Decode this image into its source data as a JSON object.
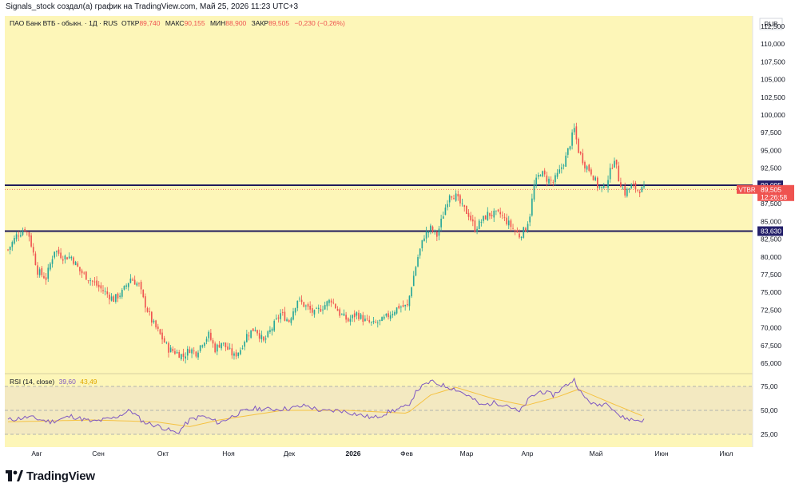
{
  "header": {
    "caption": "Signals_stock создал(а) график на TradingView.com, Май 25, 2026 11:23 UTC+3"
  },
  "legend": {
    "instrument": "ПАО Банк ВТБ - обыкн. · 1Д · RUS",
    "open_label": "ОТКР",
    "open_value": "89,740",
    "high_label": "МАКС",
    "high_value": "90,155",
    "low_label": "МИН",
    "low_value": "88,900",
    "close_label": "ЗАКР",
    "close_value": "89,505",
    "change": "−0,230 (−0,26%)"
  },
  "currency": "RUB",
  "price_tag": {
    "ticker": "VTBR",
    "price": "89,505",
    "countdown": "12:26:58"
  },
  "levels": [
    {
      "label": "90,095",
      "value": 90.095
    },
    {
      "label": "83,630",
      "value": 83.63
    }
  ],
  "rsi": {
    "label": "RSI (14, close)",
    "value": "39,60",
    "ma_value": "43,49"
  },
  "branding": {
    "logo_text": "TradingView"
  },
  "colors": {
    "up": "#26a69a",
    "down": "#ef5350",
    "background": "#fdf6b8",
    "level_line": "#1f1b5c",
    "rsi_line": "#7e57c2",
    "rsi_ma": "#f5c242",
    "rsi_band": "#f2e8c2"
  },
  "chart_data": {
    "type": "candlestick",
    "y_ticks": [
      "112,500",
      "110,000",
      "107,500",
      "105,000",
      "102,500",
      "100,000",
      "97,500",
      "95,000",
      "92,500",
      "90,000",
      "87,500",
      "85,000",
      "82,500",
      "80,000",
      "77,500",
      "75,000",
      "72,500",
      "70,000",
      "67,500",
      "65,000"
    ],
    "y_tick_values": [
      112.5,
      110,
      107.5,
      105,
      102.5,
      100,
      97.5,
      95,
      92.5,
      90,
      87.5,
      85,
      82.5,
      80,
      77.5,
      75,
      72.5,
      70,
      67.5,
      65
    ],
    "ylim": [
      64,
      113.5
    ],
    "x_ticks": [
      "Авг",
      "Сен",
      "Окт",
      "Ноя",
      "Дек",
      "2026",
      "Фев",
      "Мар",
      "Апр",
      "Май",
      "Июн",
      "Июл"
    ],
    "rsi_ticks": [
      "75,00",
      "50,00",
      "25,00"
    ],
    "rsi_tick_values": [
      75,
      50,
      25
    ],
    "rsi_ylim": [
      15,
      85
    ],
    "close_path": [
      [
        0,
        81
      ],
      [
        4,
        83
      ],
      [
        8,
        84
      ],
      [
        10,
        83
      ],
      [
        14,
        78
      ],
      [
        18,
        77
      ],
      [
        22,
        81
      ],
      [
        26,
        80
      ],
      [
        30,
        80
      ],
      [
        34,
        78
      ],
      [
        38,
        77
      ],
      [
        42,
        76
      ],
      [
        46,
        75
      ],
      [
        50,
        74
      ],
      [
        54,
        75
      ],
      [
        58,
        77
      ],
      [
        62,
        76
      ],
      [
        64,
        74
      ],
      [
        68,
        71
      ],
      [
        72,
        69
      ],
      [
        76,
        67
      ],
      [
        80,
        66.5
      ],
      [
        83,
        66
      ],
      [
        86,
        67
      ],
      [
        89,
        66.5
      ],
      [
        92,
        68
      ],
      [
        95,
        69
      ],
      [
        98,
        67
      ],
      [
        101,
        68
      ],
      [
        104,
        67
      ],
      [
        107,
        66
      ],
      [
        110,
        67
      ],
      [
        113,
        69
      ],
      [
        117,
        70
      ],
      [
        121,
        68
      ],
      [
        125,
        70
      ],
      [
        129,
        72
      ],
      [
        133,
        71
      ],
      [
        137,
        74
      ],
      [
        141,
        73
      ],
      [
        145,
        72
      ],
      [
        149,
        73
      ],
      [
        153,
        74
      ],
      [
        157,
        72
      ],
      [
        161,
        71
      ],
      [
        165,
        72
      ],
      [
        169,
        71
      ],
      [
        173,
        70.5
      ],
      [
        177,
        71
      ],
      [
        181,
        72
      ],
      [
        185,
        73
      ],
      [
        189,
        73
      ],
      [
        191,
        76
      ],
      [
        194,
        80
      ],
      [
        197,
        83
      ],
      [
        200,
        84
      ],
      [
        203,
        83
      ],
      [
        206,
        86
      ],
      [
        209,
        89
      ],
      [
        212,
        88.5
      ],
      [
        215,
        87
      ],
      [
        218,
        86
      ],
      [
        221,
        84
      ],
      [
        224,
        85
      ],
      [
        227,
        86
      ],
      [
        230,
        86
      ],
      [
        233,
        86
      ],
      [
        236,
        85
      ],
      [
        239,
        84
      ],
      [
        242,
        83
      ],
      [
        245,
        84
      ],
      [
        247,
        86
      ],
      [
        249,
        90
      ],
      [
        252,
        92
      ],
      [
        255,
        91
      ],
      [
        258,
        90.5
      ],
      [
        261,
        92
      ],
      [
        264,
        94
      ],
      [
        266,
        96
      ],
      [
        268,
        98
      ],
      [
        270,
        95
      ],
      [
        273,
        93
      ],
      [
        276,
        92
      ],
      [
        279,
        90
      ],
      [
        282,
        89.5
      ],
      [
        285,
        92
      ],
      [
        287,
        94
      ],
      [
        289,
        91
      ],
      [
        292,
        89
      ],
      [
        295,
        90
      ],
      [
        298,
        89.5
      ],
      [
        301,
        89.505
      ]
    ],
    "total_bars": 301,
    "rsi_path": [
      [
        0,
        40
      ],
      [
        10,
        43
      ],
      [
        20,
        38
      ],
      [
        30,
        44
      ],
      [
        40,
        38
      ],
      [
        50,
        42
      ],
      [
        58,
        50
      ],
      [
        64,
        38
      ],
      [
        72,
        33
      ],
      [
        80,
        26
      ],
      [
        86,
        40
      ],
      [
        92,
        44
      ],
      [
        100,
        37
      ],
      [
        110,
        48
      ],
      [
        117,
        52
      ],
      [
        125,
        51
      ],
      [
        133,
        52
      ],
      [
        141,
        55
      ],
      [
        149,
        49
      ],
      [
        157,
        50
      ],
      [
        165,
        46
      ],
      [
        173,
        42
      ],
      [
        181,
        49
      ],
      [
        189,
        54
      ],
      [
        194,
        72
      ],
      [
        200,
        80
      ],
      [
        206,
        76
      ],
      [
        212,
        72
      ],
      [
        218,
        65
      ],
      [
        224,
        55
      ],
      [
        230,
        58
      ],
      [
        236,
        56
      ],
      [
        242,
        48
      ],
      [
        247,
        63
      ],
      [
        252,
        70
      ],
      [
        258,
        66
      ],
      [
        264,
        76
      ],
      [
        268,
        82
      ],
      [
        272,
        65
      ],
      [
        278,
        55
      ],
      [
        284,
        58
      ],
      [
        290,
        43
      ],
      [
        296,
        40
      ],
      [
        301,
        39.6
      ]
    ],
    "rsi_ma_path": [
      [
        0,
        38
      ],
      [
        40,
        40
      ],
      [
        70,
        38
      ],
      [
        86,
        33
      ],
      [
        100,
        40
      ],
      [
        130,
        50
      ],
      [
        160,
        50
      ],
      [
        189,
        47
      ],
      [
        200,
        66
      ],
      [
        212,
        74
      ],
      [
        230,
        62
      ],
      [
        245,
        55
      ],
      [
        260,
        64
      ],
      [
        270,
        72
      ],
      [
        285,
        58
      ],
      [
        301,
        43.49
      ]
    ]
  }
}
